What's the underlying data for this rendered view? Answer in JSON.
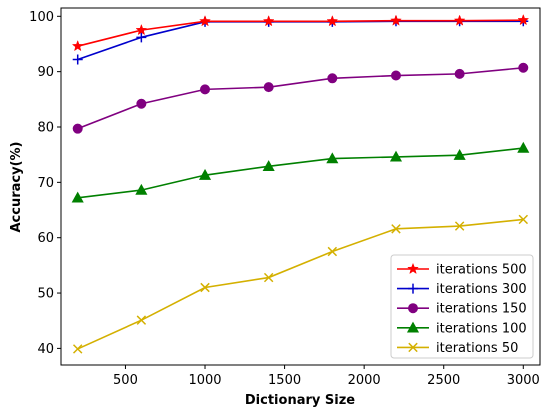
{
  "chart_data": {
    "type": "line",
    "title": "",
    "xlabel": "Dictionary Size",
    "ylabel": "Accuracy(%)",
    "xlim": [
      95,
      3105
    ],
    "ylim": [
      37,
      101.5
    ],
    "x_ticks": [
      500,
      1000,
      1500,
      2000,
      2500,
      3000
    ],
    "y_ticks": [
      40,
      50,
      60,
      70,
      80,
      90,
      100
    ],
    "x": [
      200,
      600,
      1000,
      1400,
      1800,
      2200,
      2600,
      3000
    ],
    "grid": false,
    "legend_position": "lower-right",
    "series": [
      {
        "name": "iterations 500",
        "color": "#ff0000",
        "marker": "star",
        "values": [
          94.6,
          97.5,
          99.1,
          99.1,
          99.1,
          99.2,
          99.2,
          99.3
        ]
      },
      {
        "name": "iterations 300",
        "color": "#0000cc",
        "marker": "plus",
        "values": [
          92.2,
          96.2,
          99.0,
          99.0,
          99.0,
          99.1,
          99.1,
          99.1
        ]
      },
      {
        "name": "iterations 150",
        "color": "#800080",
        "marker": "circle",
        "values": [
          79.7,
          84.2,
          86.8,
          87.2,
          88.8,
          89.3,
          89.6,
          90.7
        ]
      },
      {
        "name": "iterations 100",
        "color": "#008000",
        "marker": "triangle",
        "values": [
          67.2,
          68.6,
          71.3,
          72.9,
          74.3,
          74.6,
          74.9,
          76.2
        ]
      },
      {
        "name": "iterations 50",
        "color": "#d4b000",
        "marker": "x",
        "values": [
          39.9,
          45.1,
          51.0,
          52.8,
          57.5,
          61.6,
          62.1,
          63.3
        ]
      }
    ]
  }
}
